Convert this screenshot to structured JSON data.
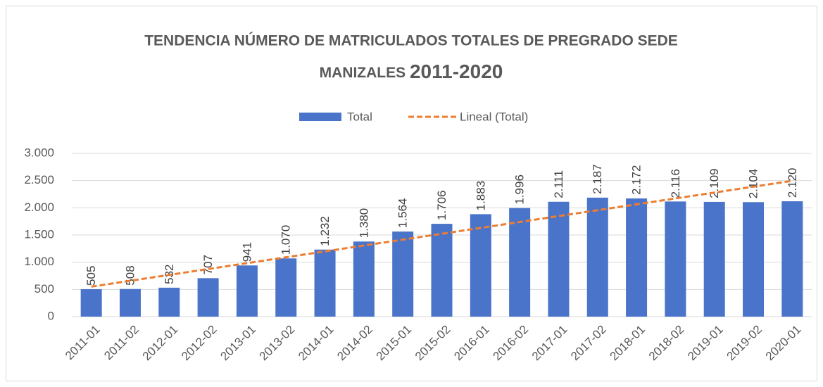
{
  "chart_data": {
    "type": "bar",
    "title": [
      "TENDENCIA NÚMERO DE MATRICULADOS TOTALES DE PREGRADO SEDE",
      "MANIZALES",
      "2011-2020"
    ],
    "categories": [
      "2011-01",
      "2011-02",
      "2012-01",
      "2012-02",
      "2013-01",
      "2013-02",
      "2014-01",
      "2014-02",
      "2015-01",
      "2015-02",
      "2016-01",
      "2016-02",
      "2017-01",
      "2017-02",
      "2018-01",
      "2018-02",
      "2019-01",
      "2019-02",
      "2020-01"
    ],
    "series": [
      {
        "name": "Total",
        "color": "#4a74c9",
        "values": [
          505,
          508,
          532,
          707,
          941,
          1070,
          1232,
          1380,
          1564,
          1706,
          1883,
          1996,
          2111,
          2187,
          2172,
          2116,
          2109,
          2104,
          2120
        ],
        "value_labels": [
          "505",
          "508",
          "532",
          "707",
          "941",
          "1.070",
          "1.232",
          "1.380",
          "1.564",
          "1.706",
          "1.883",
          "1.996",
          "2.111",
          "2.187",
          "2.172",
          "2.116",
          "2.109",
          "2.104",
          "2.120"
        ]
      },
      {
        "name": "Lineal (Total)",
        "color": "#ed7d31",
        "type": "line",
        "dashed": true,
        "values": [
          551,
          659,
          767,
          875,
          983,
          1091,
          1199,
          1307,
          1415,
          1523,
          1631,
          1739,
          1848,
          1956,
          2064,
          2172,
          2280,
          2388,
          2496
        ]
      }
    ],
    "ylim": [
      0,
      3000
    ],
    "yticks": [
      0,
      500,
      {
        "value": 1000,
        "label": "1.000"
      },
      {
        "value": 1500,
        "label": "1.500"
      },
      {
        "value": 2000,
        "label": "2.000"
      },
      {
        "value": 2500,
        "label": "2.500"
      },
      {
        "value": 3000,
        "label": "3.000"
      }
    ],
    "grid": true
  }
}
